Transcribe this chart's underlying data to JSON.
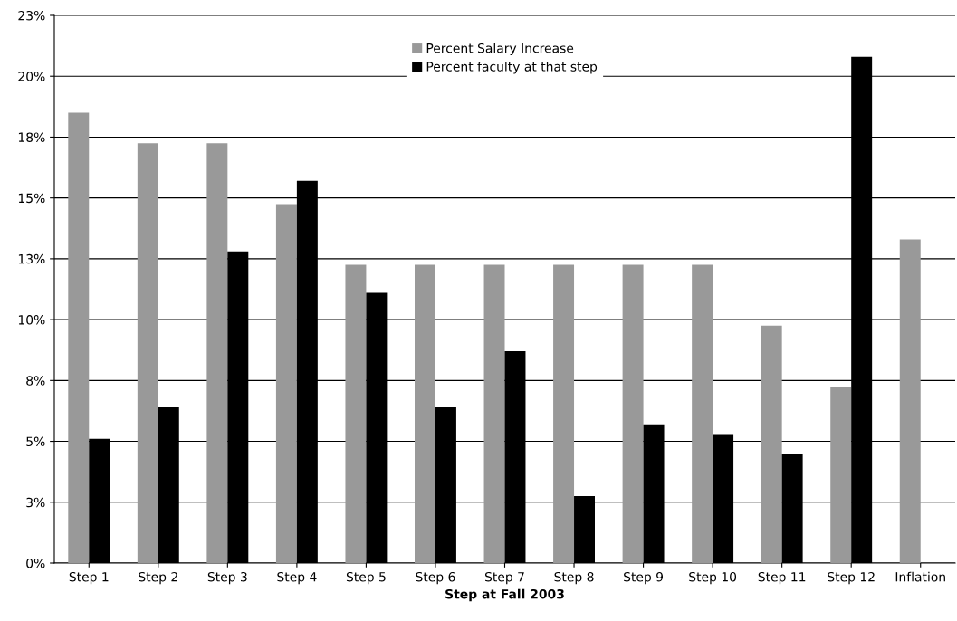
{
  "chart_data": {
    "type": "bar",
    "xlabel": "Step at Fall 2003",
    "categories": [
      "Step 1",
      "Step 2",
      "Step 3",
      "Step 4",
      "Step 5",
      "Step 6",
      "Step 7",
      "Step 8",
      "Step 9",
      "Step 10",
      "Step 11",
      "Step 12",
      "Inflation"
    ],
    "series": [
      {
        "name": "Percent Salary Increase",
        "color": "#999999",
        "values": [
          18.5,
          17.25,
          17.25,
          14.75,
          12.25,
          12.25,
          12.25,
          12.25,
          12.25,
          12.25,
          9.75,
          7.25,
          13.3
        ]
      },
      {
        "name": "Percent faculty at that step",
        "color": "#000000",
        "values": [
          5.1,
          6.4,
          12.8,
          15.7,
          11.1,
          6.4,
          8.7,
          2.75,
          5.7,
          5.3,
          4.5,
          20.8,
          null
        ]
      }
    ],
    "ylim": [
      0,
      22.5
    ],
    "yticks": [
      {
        "value": 0,
        "label": "0%"
      },
      {
        "value": 2.5,
        "label": "3%"
      },
      {
        "value": 5,
        "label": "5%"
      },
      {
        "value": 7.5,
        "label": "8%"
      },
      {
        "value": 10,
        "label": "10%"
      },
      {
        "value": 12.5,
        "label": "13%"
      },
      {
        "value": 15,
        "label": "15%"
      },
      {
        "value": 17.5,
        "label": "18%"
      },
      {
        "value": 20,
        "label": "20%"
      },
      {
        "value": 22.5,
        "label": "23%"
      }
    ],
    "grid": "y",
    "legend": "top"
  }
}
